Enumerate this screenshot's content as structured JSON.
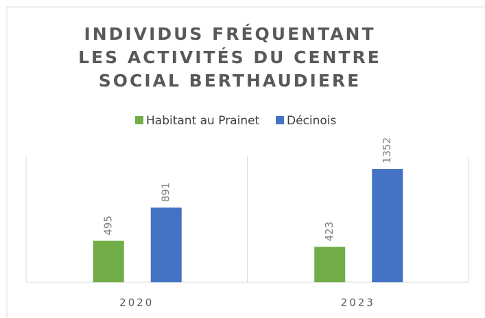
{
  "chart_data": {
    "type": "bar",
    "title": "INDIVIDUS FRÉQUENTANT LES ACTIVITÉS DU CENTRE SOCIAL BERTHAUDIERE",
    "categories": [
      "2020",
      "2023"
    ],
    "series": [
      {
        "name": "Habitant au Prainet",
        "color": "#70ad47",
        "values": [
          495,
          423
        ]
      },
      {
        "name": "Décinois",
        "color": "#4472c4",
        "values": [
          891,
          1352
        ]
      }
    ],
    "ylim": [
      0,
      1500
    ],
    "legend": "top"
  }
}
